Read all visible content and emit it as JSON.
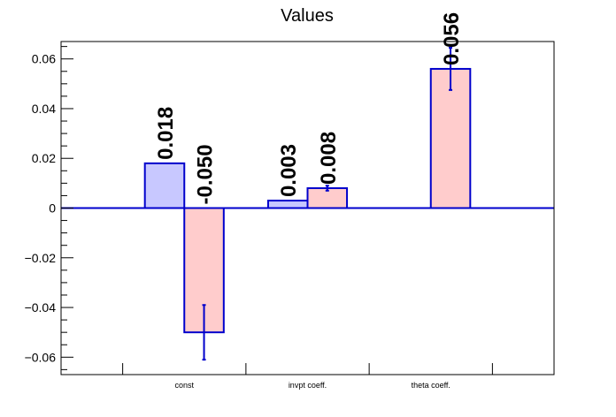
{
  "chart_data": {
    "type": "bar",
    "title": "Values",
    "xlabel": "",
    "ylabel": "",
    "categories": [
      "const",
      "invpt coeff.",
      "theta coeff."
    ],
    "ylim": [
      -0.067,
      0.067
    ],
    "yticks": [
      -0.06,
      -0.04,
      -0.02,
      0,
      0.02,
      0.04,
      0.06
    ],
    "ytick_labels": [
      "−0.06",
      "−0.04",
      "−0.02",
      "0",
      "0.02",
      "0.04",
      "0.06"
    ],
    "grid": false,
    "legend": "none",
    "series": [
      {
        "color": "#c8c8ff",
        "values": [
          0.018,
          0.003,
          null
        ],
        "labels": [
          "0.018",
          "0.003",
          ""
        ]
      },
      {
        "color": "#ffcccc",
        "values": [
          -0.05,
          0.008,
          0.056
        ],
        "labels": [
          "-0.050",
          "0.008",
          "0.056"
        ],
        "errors": [
          0.011,
          0.001,
          0.0085
        ]
      }
    ],
    "edge_color": "#0000cc"
  }
}
